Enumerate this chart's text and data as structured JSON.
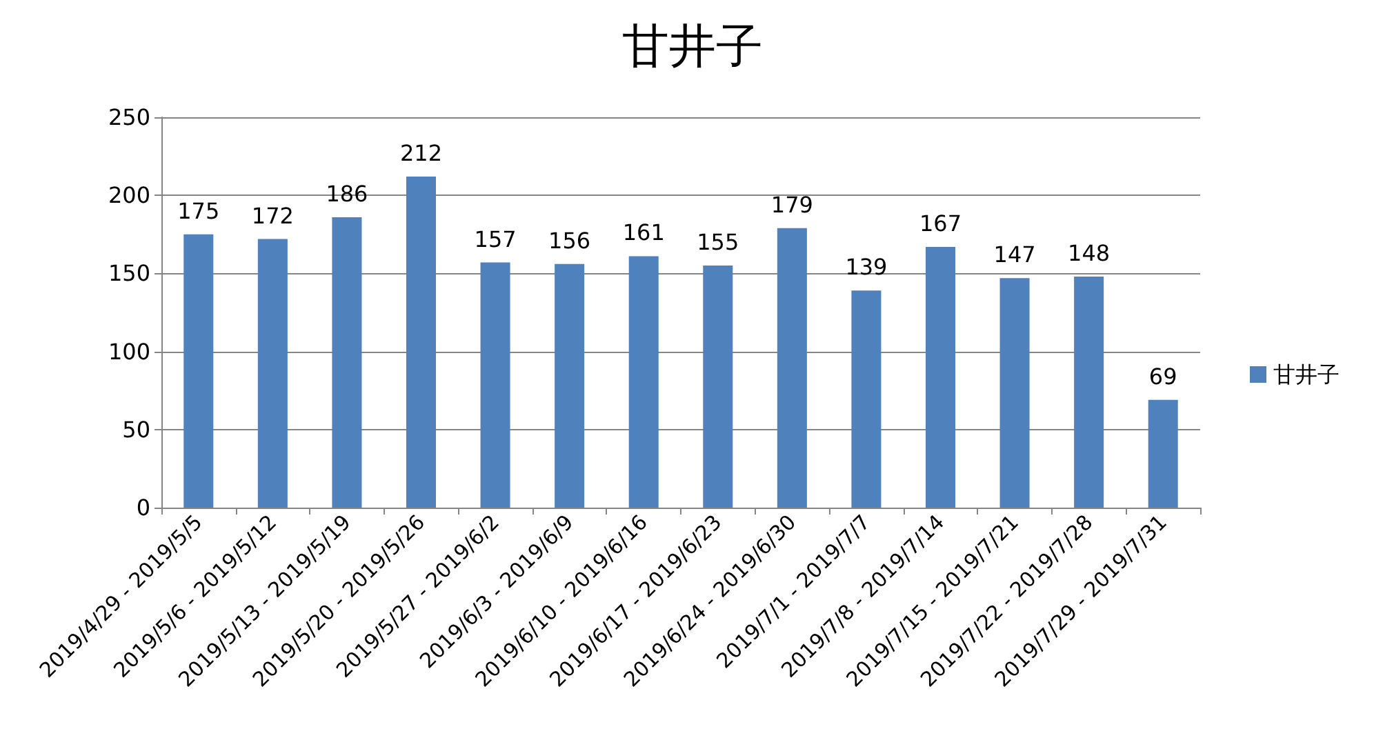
{
  "chart_data": {
    "type": "bar",
    "title": "甘井子",
    "categories": [
      "2019/4/29 - 2019/5/5",
      "2019/5/6 - 2019/5/12",
      "2019/5/13 - 2019/5/19",
      "2019/5/20 - 2019/5/26",
      "2019/5/27 - 2019/6/2",
      "2019/6/3 - 2019/6/9",
      "2019/6/10 - 2019/6/16",
      "2019/6/17 - 2019/6/23",
      "2019/6/24 - 2019/6/30",
      "2019/7/1 - 2019/7/7",
      "2019/7/8 - 2019/7/14",
      "2019/7/15 - 2019/7/21",
      "2019/7/22 - 2019/7/28",
      "2019/7/29 - 2019/7/31"
    ],
    "series": [
      {
        "name": "甘井子",
        "color": "#4f81bd",
        "values": [
          175,
          172,
          186,
          212,
          157,
          156,
          161,
          155,
          179,
          139,
          167,
          147,
          148,
          69
        ]
      }
    ],
    "ylim": [
      0,
      250
    ],
    "yticks": [
      0,
      50,
      100,
      150,
      200,
      250
    ],
    "grid": "y",
    "legend": "right",
    "data_labels": true
  }
}
